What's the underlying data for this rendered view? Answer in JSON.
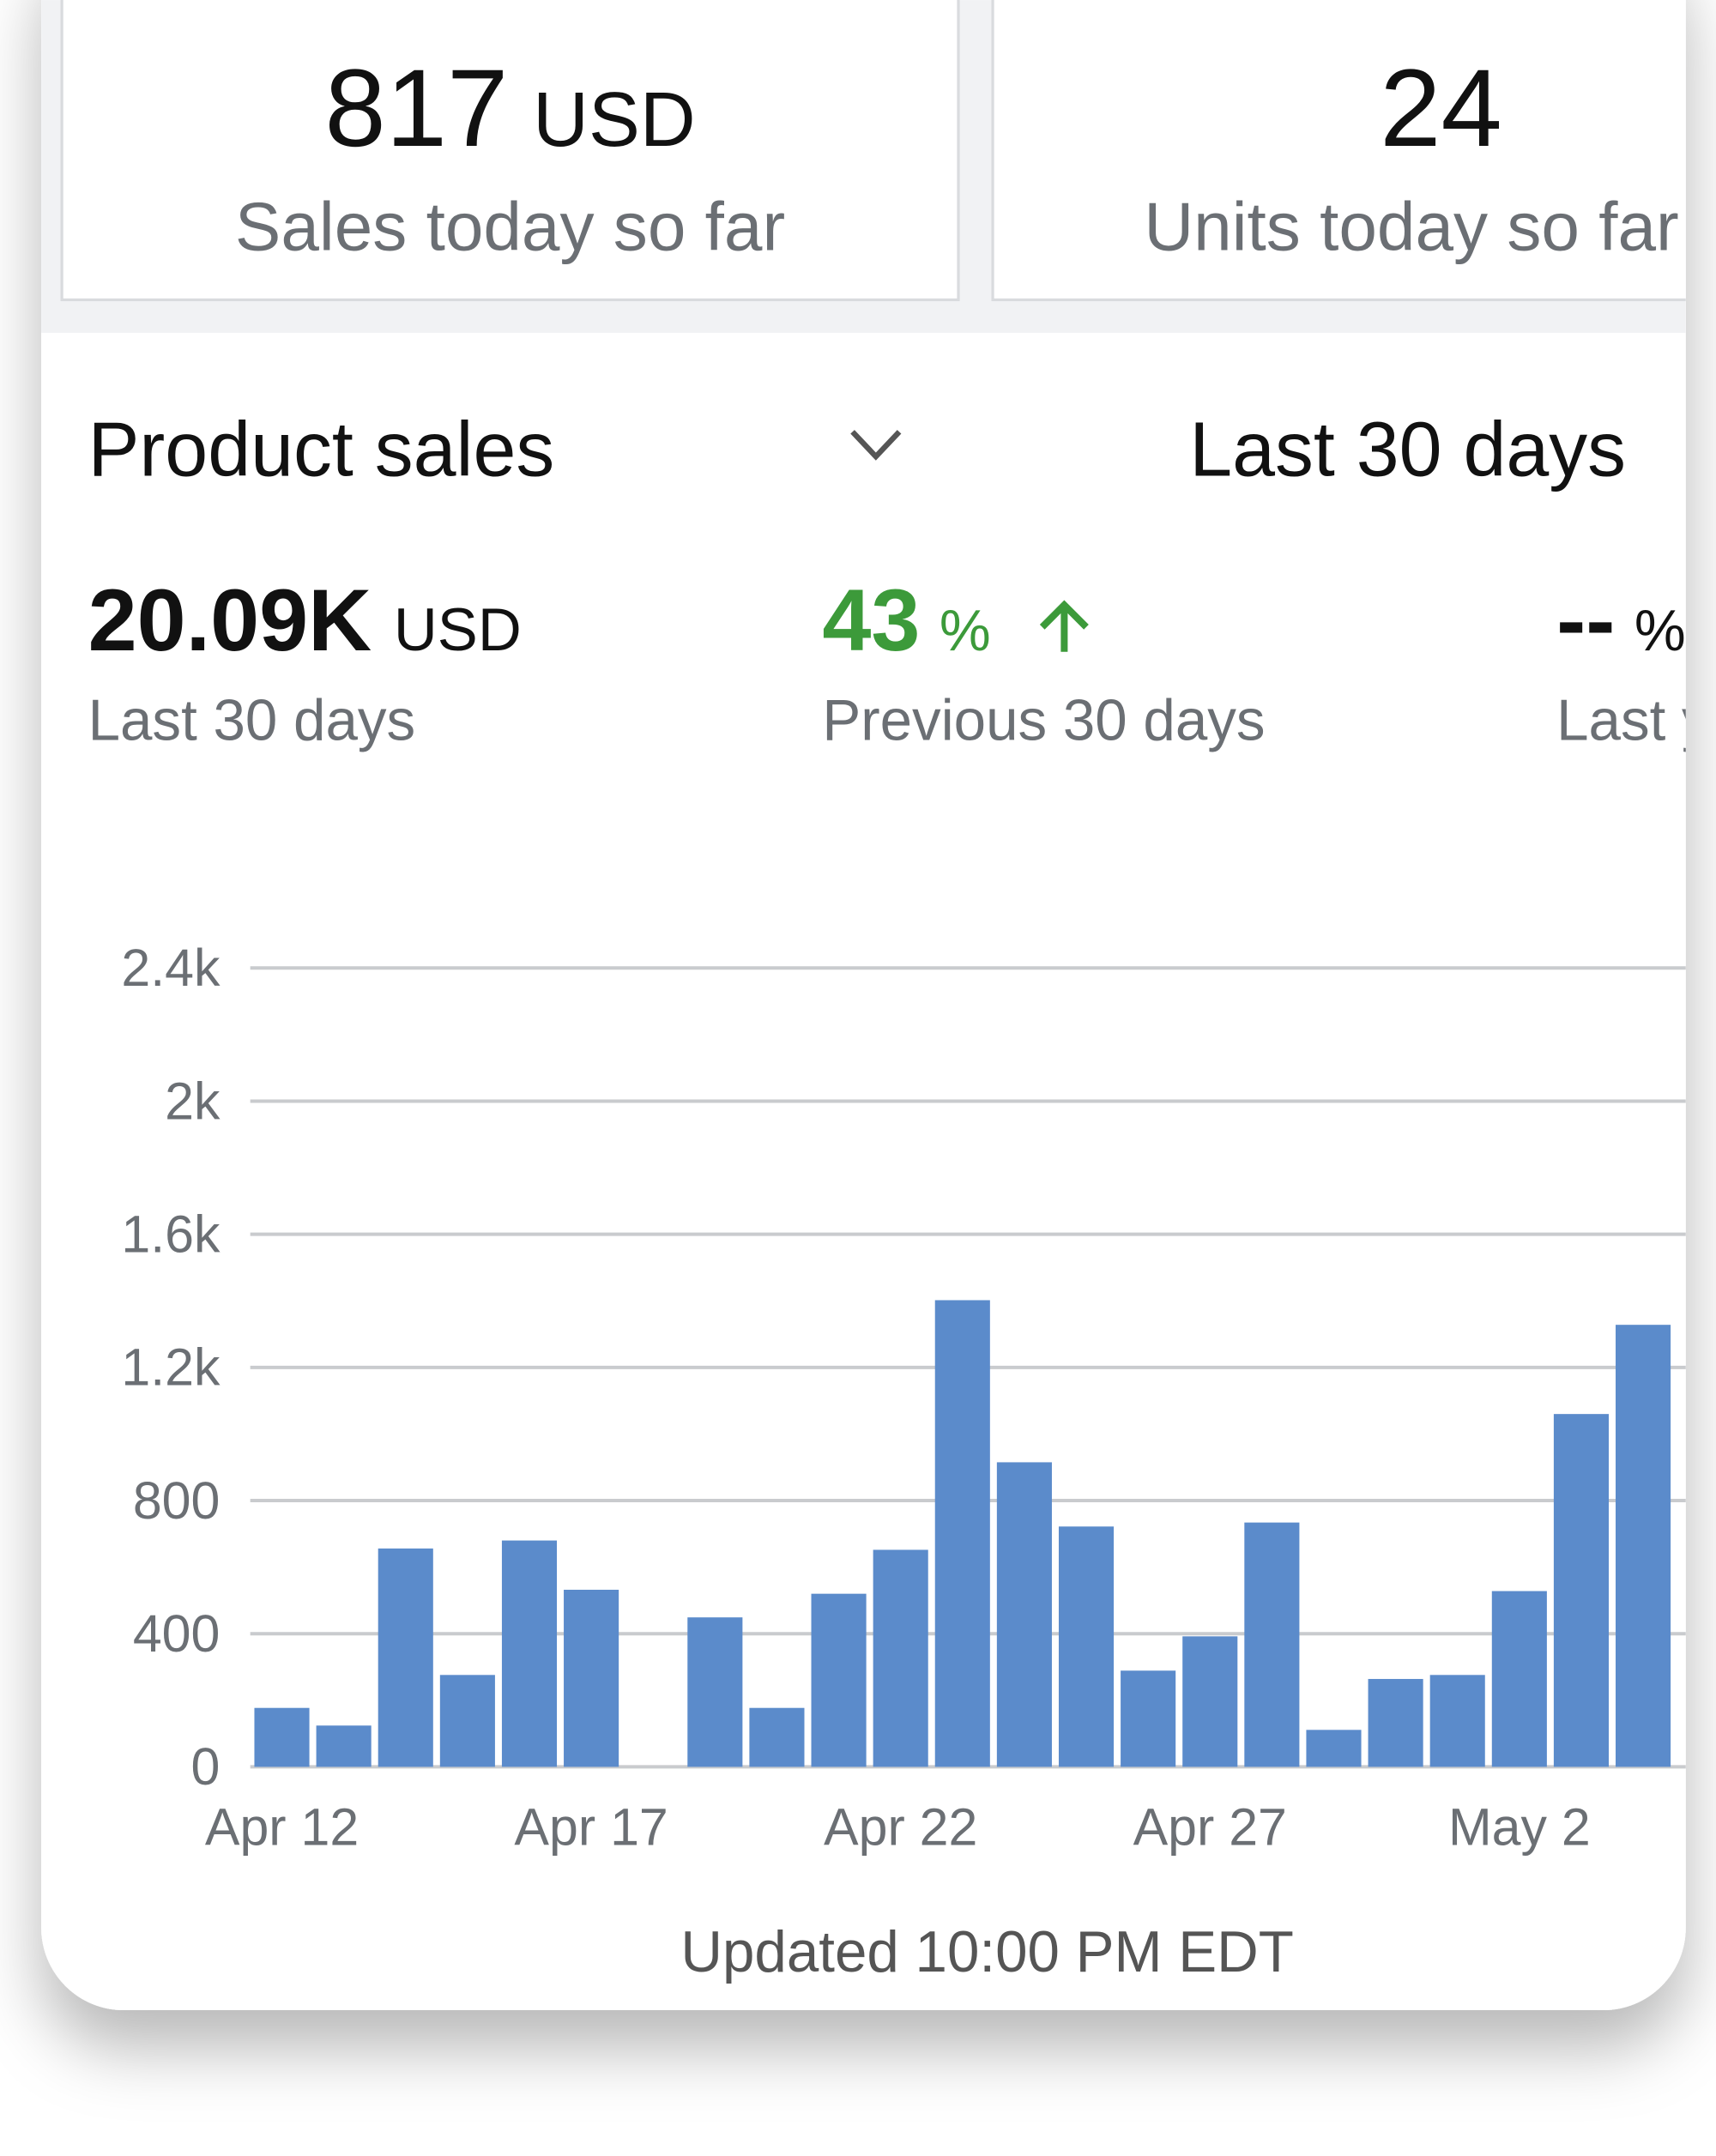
{
  "cards": [
    {
      "value": "817",
      "unit": "USD",
      "label": "Sales today so far"
    },
    {
      "value": "24",
      "label": "Units today so far"
    }
  ],
  "metric_selector": "Product sales",
  "range": "Last 30 days",
  "summary": [
    {
      "value": "20.09K",
      "unit": "USD",
      "label": "Last 30 days"
    },
    {
      "value": "43",
      "unit": "%",
      "label": "Previous 30 days"
    },
    {
      "value": "--",
      "unit": "%",
      "label": "Last year"
    }
  ],
  "chart_data": {
    "type": "bar",
    "categories": [
      "Apr 12",
      null,
      null,
      null,
      null,
      "Apr 17",
      null,
      null,
      null,
      null,
      "Apr 22",
      null,
      null,
      null,
      null,
      "Apr 27",
      null,
      null,
      null,
      null,
      "May 2",
      null,
      null
    ],
    "values": [
      177,
      124,
      656,
      276,
      680,
      532,
      0,
      449,
      177,
      520,
      652,
      1402,
      915,
      722,
      289,
      392,
      734,
      111,
      264,
      276,
      528,
      1060,
      1328
    ],
    "color": "#5b8bcb",
    "ylim": [
      0,
      2400
    ],
    "yticks": [
      0,
      400,
      800,
      {
        "value": 1200,
        "label": "1.2k"
      },
      {
        "value": 1600,
        "label": "1.6k"
      },
      {
        "value": 2000,
        "label": "2k"
      },
      {
        "value": 2400,
        "label": "2.4k"
      }
    ],
    "grid": true
  },
  "footer": "Updated 10:00 PM EDT"
}
